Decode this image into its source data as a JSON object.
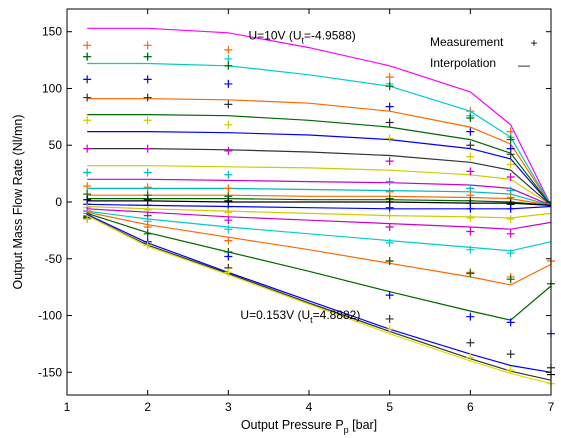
{
  "chart_data": {
    "type": "line",
    "xlabel_main": "Output Pressure P",
    "xlabel_sub": "p",
    "xlabel_unit": " [bar]",
    "ylabel": "Output Mass Flow Rate (Nl/mn)",
    "xlim": [
      1,
      7
    ],
    "ylim": [
      -170,
      170
    ],
    "xticks": [
      1,
      2,
      3,
      4,
      5,
      6,
      7
    ],
    "yticks": [
      -150,
      -100,
      -50,
      0,
      50,
      100,
      150
    ],
    "grid": false,
    "legend": {
      "placement": "top-right",
      "entries": [
        {
          "label": "Measurement",
          "marker": "+"
        },
        {
          "label": "Interpolation",
          "marker": "—"
        }
      ]
    },
    "annotations": [
      {
        "text_main": "U=10V (U",
        "text_sub": "t",
        "text_end": "=-4.9588)",
        "x": 3.25,
        "y": 143
      },
      {
        "text_main": "U=0.153V (U",
        "text_sub": "t",
        "text_end": "=4.8882)",
        "x": 3.15,
        "y": -103
      }
    ],
    "series": [
      {
        "color": "#ff00ff",
        "line_x": [
          1.25,
          2,
          3,
          4,
          5,
          6,
          6.5,
          7
        ],
        "line_y": [
          153,
          153,
          149,
          136,
          120,
          97,
          68,
          -3
        ],
        "markers_x": [],
        "markers_y": []
      },
      {
        "color": "#ff6600",
        "line_x": [
          1.25,
          2,
          3,
          4,
          5,
          6,
          6.5,
          7
        ],
        "line_y": [
          91,
          91,
          90,
          87,
          80,
          66,
          51,
          -3
        ],
        "markers_x": [
          1.25,
          2,
          3,
          5,
          6,
          6.5
        ],
        "markers_y": [
          138,
          138,
          134,
          110,
          80,
          62
        ]
      },
      {
        "color": "#00cccc",
        "line_x": [
          1.25,
          2,
          3,
          4,
          5,
          6,
          6.5,
          7
        ],
        "line_y": [
          122,
          122,
          120,
          112,
          102,
          80,
          57,
          -3
        ],
        "markers_x": [
          1.25,
          2,
          3,
          5,
          6,
          6.5
        ],
        "markers_y": [
          128,
          128,
          126,
          104,
          76,
          57
        ]
      },
      {
        "color": "#0000ff",
        "line_x": [
          1.25,
          2,
          3,
          4,
          5,
          6,
          6.5,
          7
        ],
        "line_y": [
          62,
          62,
          61,
          59,
          55,
          47,
          38,
          -3
        ],
        "markers_x": [
          1.25,
          2,
          3,
          5,
          6,
          6.5
        ],
        "markers_y": [
          108,
          108,
          104,
          84,
          62,
          47
        ]
      },
      {
        "color": "#006600",
        "line_x": [
          1.25,
          2,
          3,
          4,
          5,
          6,
          6.5,
          7
        ],
        "line_y": [
          77,
          77,
          76,
          72,
          66,
          55,
          43,
          -3
        ],
        "markers_x": [
          1.25,
          2,
          3,
          5,
          6,
          6.5
        ],
        "markers_y": [
          128,
          128,
          120,
          102,
          74,
          55
        ]
      },
      {
        "color": "#333333",
        "line_x": [
          1.25,
          2,
          3,
          4,
          5,
          6,
          6.5,
          7
        ],
        "line_y": [
          47,
          47,
          46,
          44,
          41,
          35,
          28,
          -3
        ],
        "markers_x": [
          1.25,
          2,
          3,
          5,
          6,
          6.5
        ],
        "markers_y": [
          92,
          92,
          86,
          70,
          50,
          42
        ]
      },
      {
        "color": "#cccc00",
        "line_x": [
          1.25,
          2,
          3,
          4,
          5,
          6,
          6.5,
          7
        ],
        "line_y": [
          32,
          32,
          31,
          30,
          28,
          24,
          20,
          -3
        ],
        "markers_x": [
          1.25,
          2,
          3,
          5,
          6,
          6.5
        ],
        "markers_y": [
          72,
          72,
          68,
          56,
          40,
          33
        ]
      },
      {
        "color": "#cc00cc",
        "line_x": [
          1.25,
          2,
          3,
          4,
          5,
          6,
          6.5,
          7
        ],
        "line_y": [
          20,
          20,
          19,
          18,
          17,
          15,
          12,
          -3
        ],
        "markers_x": [
          1.25,
          2,
          3,
          5,
          6,
          6.5
        ],
        "markers_y": [
          47,
          47,
          45,
          36,
          27,
          22
        ]
      },
      {
        "color": "#00bbbb",
        "line_x": [
          1.25,
          2,
          3,
          4,
          5,
          6,
          6.5,
          7
        ],
        "line_y": [
          12,
          12,
          12,
          11,
          10,
          9,
          7,
          -3
        ],
        "markers_x": [
          1.25,
          2,
          3,
          5,
          6,
          6.5
        ],
        "markers_y": [
          26,
          26,
          24,
          18,
          12,
          10
        ]
      },
      {
        "color": "#ff6600",
        "line_x": [
          1.25,
          2,
          3,
          4,
          5,
          6,
          6.5,
          7
        ],
        "line_y": [
          6,
          6,
          6,
          5,
          5,
          4,
          3,
          -3
        ],
        "markers_x": [
          1.25,
          2,
          3,
          5,
          6,
          6.5
        ],
        "markers_y": [
          14,
          13,
          12,
          9,
          6,
          4
        ]
      },
      {
        "color": "#006600",
        "line_x": [
          1.25,
          2,
          3,
          4,
          5,
          6,
          6.5,
          7
        ],
        "line_y": [
          3,
          3,
          3,
          2,
          2,
          1,
          0,
          -3
        ],
        "markers_x": [
          1.25,
          2,
          3,
          5,
          6,
          6.5
        ],
        "markers_y": [
          7,
          6,
          5,
          3,
          1,
          0
        ]
      },
      {
        "color": "#000000",
        "line_x": [
          1.25,
          2,
          3,
          4,
          5,
          6,
          6.5,
          7
        ],
        "line_y": [
          1,
          1,
          0,
          0,
          0,
          -1,
          -1,
          -3
        ],
        "markers_x": [
          1.25,
          2,
          3,
          5,
          6,
          6.5
        ],
        "markers_y": [
          2,
          2,
          1,
          0,
          -1,
          -2
        ]
      },
      {
        "color": "#0000ff",
        "line_x": [
          1.25,
          2,
          3,
          4,
          5,
          6,
          6.5,
          7
        ],
        "line_y": [
          -2,
          -3,
          -4,
          -5,
          -6,
          -6,
          -6,
          -4
        ],
        "markers_x": [
          1.25,
          2,
          3,
          5,
          6,
          6.5
        ],
        "markers_y": [
          -2,
          -3,
          -4,
          -5,
          -6,
          -6
        ]
      },
      {
        "color": "#cccc00",
        "line_x": [
          1.25,
          2,
          3,
          4,
          5,
          6,
          6.5,
          7
        ],
        "line_y": [
          -4,
          -6,
          -8,
          -10,
          -12,
          -13,
          -14,
          -10
        ],
        "markers_x": [
          1.25,
          2,
          3,
          5,
          6,
          6.5
        ],
        "markers_y": [
          -5,
          -7,
          -9,
          -12,
          -14,
          -15
        ]
      },
      {
        "color": "#cc00cc",
        "line_x": [
          1.25,
          2,
          3,
          4,
          5,
          6,
          6.5,
          7
        ],
        "line_y": [
          -6,
          -9,
          -13,
          -16,
          -19,
          -22,
          -24,
          -18
        ],
        "markers_x": [
          1.25,
          2,
          3,
          5,
          6,
          6.5
        ],
        "markers_y": [
          -8,
          -12,
          -16,
          -22,
          -26,
          -28
        ]
      },
      {
        "color": "#00cccc",
        "line_x": [
          1.25,
          2,
          3,
          4,
          5,
          6,
          6.5,
          7
        ],
        "line_y": [
          -8,
          -15,
          -22,
          -28,
          -34,
          -40,
          -43,
          -35
        ],
        "markers_x": [
          1.25,
          2,
          3,
          5,
          6,
          6.5
        ],
        "markers_y": [
          -10,
          -17,
          -24,
          -36,
          -42,
          -45
        ]
      },
      {
        "color": "#ff6600",
        "line_x": [
          1.25,
          2,
          3,
          4,
          5,
          6,
          6.5,
          7
        ],
        "line_y": [
          -9,
          -20,
          -31,
          -42,
          -54,
          -66,
          -73,
          -55
        ],
        "markers_x": [
          1.25,
          2,
          3,
          5,
          6,
          6.5
        ],
        "markers_y": [
          -12,
          -22,
          -34,
          -52,
          -62,
          -66
        ]
      },
      {
        "color": "#006600",
        "line_x": [
          1.25,
          2,
          3,
          4,
          5,
          6,
          6.5,
          7
        ],
        "line_y": [
          -10,
          -27,
          -44,
          -61,
          -79,
          -96,
          -104,
          -74
        ],
        "markers_x": [
          1.25,
          2,
          3,
          5,
          6,
          6.5
        ],
        "markers_y": [
          -13,
          -28,
          -44,
          -52,
          -63,
          -68
        ]
      },
      {
        "color": "#0000ff",
        "line_x": [
          1.25,
          2,
          3,
          4,
          5,
          6,
          6.5,
          7
        ],
        "line_y": [
          -11,
          -36,
          -62,
          -87,
          -112,
          -134,
          -144,
          -150
        ],
        "markers_x": [
          1.25,
          2,
          3,
          5,
          6,
          6.5
        ],
        "markers_y": [
          -14,
          -35,
          -48,
          -82,
          -101,
          -106
        ]
      },
      {
        "color": "#333333",
        "line_x": [
          1.25,
          2,
          3,
          4,
          5,
          6,
          6.5,
          7
        ],
        "line_y": [
          -12,
          -38,
          -63,
          -89,
          -114,
          -138,
          -149,
          -157
        ],
        "markers_x": [
          1.25,
          2,
          3,
          5,
          6,
          6.5,
          7
        ],
        "markers_y": [
          -15,
          -37,
          -58,
          -103,
          -124,
          -134,
          -146
        ]
      },
      {
        "color": "#dddd00",
        "line_x": [
          1.25,
          2,
          3,
          4,
          5,
          6,
          6.5,
          7
        ],
        "line_y": [
          -12,
          -39,
          -64,
          -90,
          -116,
          -140,
          -151,
          -160
        ],
        "markers_x": [
          1.25,
          2,
          3,
          5,
          6,
          6.5,
          7
        ],
        "markers_y": [
          -15,
          -38,
          -62,
          -112,
          -137,
          -148,
          -160
        ]
      },
      {
        "color": "#0000ff",
        "line_x": [],
        "line_y": [],
        "markers_x": [
          7
        ],
        "markers_y": [
          -116
        ]
      },
      {
        "color": "#006600",
        "line_x": [],
        "line_y": [],
        "markers_x": [
          7
        ],
        "markers_y": [
          -72
        ]
      },
      {
        "color": "#ff6600",
        "line_x": [],
        "line_y": [],
        "markers_x": [
          7
        ],
        "markers_y": [
          -52
        ]
      },
      {
        "color": "#000000",
        "line_x": [],
        "line_y": [],
        "markers_x": [
          7
        ],
        "markers_y": [
          -152
        ]
      }
    ]
  }
}
